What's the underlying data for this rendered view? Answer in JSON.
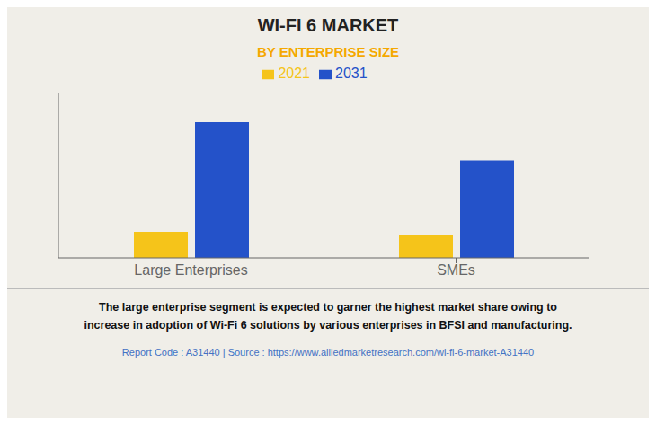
{
  "chart_data": {
    "type": "bar",
    "title": "WI-FI 6 MARKET",
    "subtitle": "BY ENTERPRISE SIZE",
    "categories": [
      "Large Enterprises",
      "SMEs"
    ],
    "series": [
      {
        "name": "2021",
        "color": "#F5C41A",
        "values": [
          1.5,
          1.3
        ]
      },
      {
        "name": "2031",
        "color": "#2452C9",
        "values": [
          7.8,
          5.6
        ]
      }
    ],
    "ylim": [
      0,
      9.5
    ],
    "grid": false,
    "tick_labels": "x",
    "annotations": [
      "The large enterprise segment is expected to garner the highest market share owing to",
      "increase in adoption of Wi-Fi 6 solutions by various enterprises in BFSI and manufacturing.",
      "Report Code : A31440  |  Source : https://www.alliedmarketresearch.com/wi-fi-6-market-A31440"
    ]
  }
}
